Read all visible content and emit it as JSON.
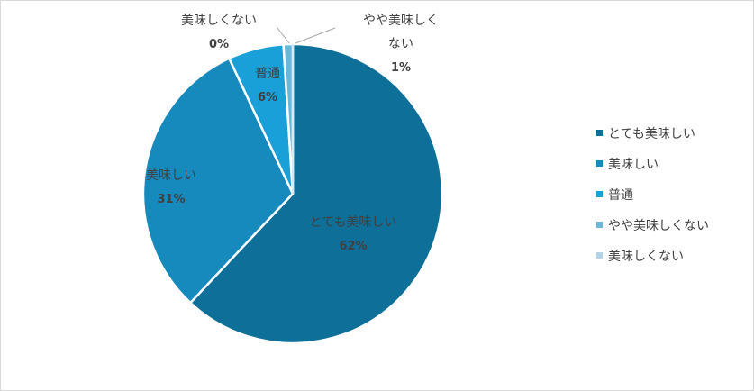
{
  "chart_data": {
    "type": "pie",
    "categories": [
      "とても美味しい",
      "美味しい",
      "普通",
      "やや美味しくない",
      "美味しくない"
    ],
    "values": [
      62,
      31,
      6,
      1,
      0
    ],
    "value_labels": [
      "62%",
      "31%",
      "6%",
      "1%",
      "0%"
    ],
    "data_label_lines": [
      [
        "とても美味しい"
      ],
      [
        "美味しい"
      ],
      [
        "普通"
      ],
      [
        "やや美味しく",
        "ない"
      ],
      [
        "美味しくない"
      ]
    ],
    "colors": [
      "#0e6f99",
      "#1689bd",
      "#19a0d8",
      "#69b8dc",
      "#b2d4e6"
    ],
    "legend_position": "right",
    "start_angle_deg": 0,
    "direction": "clockwise"
  }
}
